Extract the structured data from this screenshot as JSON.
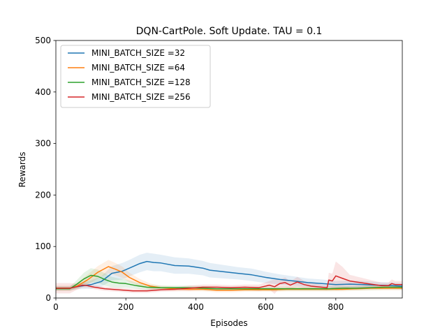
{
  "chart_data": {
    "type": "line",
    "title": "DQN-CartPole. Soft Update. TAU = 0.1",
    "xlabel": "Episodes",
    "ylabel": "Rewards",
    "xlim": [
      0,
      990
    ],
    "ylim": [
      0,
      500
    ],
    "xticks": [
      0,
      200,
      400,
      600,
      800
    ],
    "yticks": [
      0,
      100,
      200,
      300,
      400,
      500
    ],
    "grid": false,
    "legend_position": "top-left",
    "series": [
      {
        "name": "MINI_BATCH_SIZE =32",
        "color": "#1f77b4",
        "x": [
          0,
          40,
          60,
          100,
          130,
          160,
          190,
          210,
          240,
          260,
          280,
          300,
          340,
          380,
          420,
          440,
          480,
          520,
          560,
          600,
          640,
          680,
          720,
          760,
          800,
          840,
          880,
          920,
          960,
          990
        ],
        "y": [
          19,
          19,
          22,
          26,
          32,
          48,
          52,
          58,
          67,
          71,
          69,
          68,
          63,
          62,
          58,
          54,
          51,
          48,
          45,
          40,
          36,
          33,
          30,
          28,
          26,
          27,
          26,
          25,
          24,
          23
        ],
        "band": [
          4,
          4,
          5,
          8,
          10,
          14,
          16,
          16,
          17,
          17,
          17,
          16,
          16,
          15,
          14,
          14,
          13,
          12,
          12,
          11,
          10,
          9,
          8,
          8,
          7,
          7,
          7,
          6,
          6,
          6
        ]
      },
      {
        "name": "MINI_BATCH_SIZE =64",
        "color": "#ff7f0e",
        "x": [
          0,
          40,
          60,
          90,
          120,
          150,
          170,
          190,
          210,
          240,
          270,
          300,
          340,
          380,
          420,
          460,
          500,
          540,
          580,
          620,
          660,
          700,
          740,
          780,
          820,
          860,
          900,
          940,
          990
        ],
        "y": [
          19,
          19,
          23,
          35,
          50,
          61,
          56,
          50,
          40,
          30,
          23,
          20,
          18,
          17,
          17,
          15,
          15,
          16,
          16,
          16,
          17,
          17,
          17,
          17,
          17,
          18,
          19,
          19,
          19
        ],
        "band": [
          5,
          5,
          6,
          10,
          12,
          13,
          12,
          11,
          9,
          7,
          5,
          4,
          4,
          4,
          4,
          4,
          4,
          4,
          4,
          4,
          4,
          4,
          4,
          4,
          4,
          4,
          4,
          4,
          4
        ]
      },
      {
        "name": "MINI_BATCH_SIZE =128",
        "color": "#2ca02c",
        "x": [
          0,
          40,
          60,
          80,
          100,
          120,
          140,
          160,
          180,
          200,
          230,
          260,
          300,
          340,
          380,
          420,
          460,
          500,
          540,
          580,
          620,
          660,
          700,
          740,
          780,
          820,
          860,
          900,
          940,
          990
        ],
        "y": [
          18,
          18,
          27,
          37,
          44,
          42,
          36,
          31,
          29,
          28,
          24,
          21,
          20,
          20,
          20,
          19,
          18,
          18,
          18,
          18,
          18,
          18,
          18,
          18,
          18,
          19,
          19,
          20,
          21,
          21
        ],
        "band": [
          4,
          4,
          8,
          12,
          14,
          13,
          12,
          10,
          9,
          8,
          6,
          5,
          4,
          4,
          4,
          4,
          4,
          4,
          4,
          4,
          4,
          4,
          4,
          4,
          4,
          4,
          4,
          5,
          5,
          5
        ]
      },
      {
        "name": "MINI_BATCH_SIZE =256",
        "color": "#d62728",
        "x": [
          0,
          40,
          60,
          75,
          90,
          110,
          140,
          180,
          220,
          260,
          300,
          340,
          380,
          420,
          460,
          500,
          540,
          580,
          610,
          625,
          640,
          655,
          670,
          690,
          710,
          730,
          760,
          775,
          780,
          790,
          800,
          820,
          840,
          870,
          900,
          930,
          950,
          960,
          970,
          990
        ],
        "y": [
          19,
          19,
          22,
          25,
          24,
          21,
          18,
          16,
          14,
          14,
          16,
          17,
          19,
          21,
          21,
          20,
          21,
          20,
          25,
          22,
          28,
          30,
          25,
          31,
          26,
          23,
          21,
          20,
          35,
          33,
          43,
          38,
          33,
          30,
          27,
          24,
          24,
          28,
          26,
          26
        ],
        "band": [
          10,
          10,
          6,
          5,
          4,
          4,
          4,
          4,
          4,
          4,
          4,
          4,
          5,
          5,
          5,
          5,
          5,
          6,
          8,
          14,
          8,
          10,
          7,
          10,
          7,
          6,
          5,
          5,
          14,
          14,
          28,
          22,
          12,
          10,
          8,
          6,
          6,
          8,
          7,
          7
        ]
      }
    ]
  }
}
